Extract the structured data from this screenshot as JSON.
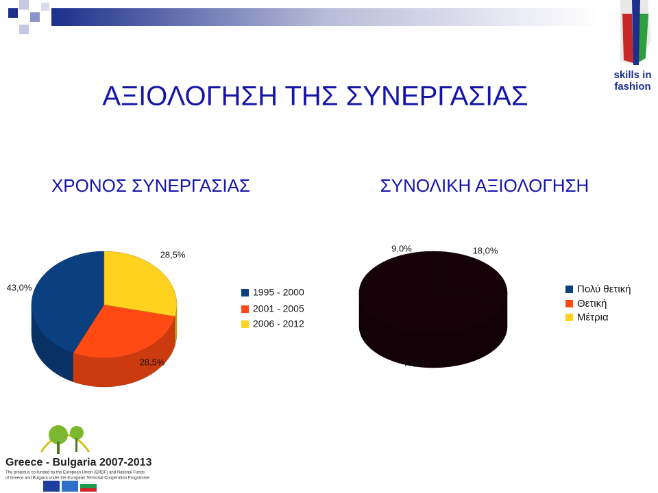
{
  "slide": {
    "title": "ΑΞΙΟΛΟΓΗΣΗ ΤΗΣ ΣΥΝΕΡΓΑΣΙΑΣ",
    "logo": [
      "skills in",
      "fashion"
    ],
    "footer": {
      "title": "Greece - Bulgaria 2007-2013",
      "note": [
        "The project is co-funded by the European Union (ERDF) and National Funds",
        "of Greece and Bulgaria under the European Territorial Cooperation Programme"
      ]
    }
  },
  "chart_data": [
    {
      "type": "pie",
      "title": "ΧΡΟΝΟΣ ΣΥΝΕΡΓΑΣΙΑΣ",
      "categories": [
        "1995 - 2000",
        "2001 - 2005",
        "2006 - 2012"
      ],
      "values": [
        43.0,
        28.5,
        28.5
      ],
      "value_labels": [
        "43,0%",
        "28,5%",
        "28,5%"
      ],
      "colors": [
        "#0a3f80",
        "#ff4a14",
        "#ffd21f"
      ],
      "legend": "right"
    },
    {
      "type": "pie",
      "title": "ΣΥΝΟΛΙΚΗ ΑΞΙΟΛΟΓΗΣΗ",
      "categories": [
        "Πολύ θετική",
        "Θετική",
        "Μέτρια"
      ],
      "values": [
        73.0,
        18.0,
        9.0
      ],
      "value_labels": [
        "73,0%",
        "18,0%",
        "9,0%"
      ],
      "colors": [
        "#0a3f80",
        "#ff4a14",
        "#ffd21f"
      ],
      "slice_color": "#16030a",
      "legend": "right"
    }
  ]
}
